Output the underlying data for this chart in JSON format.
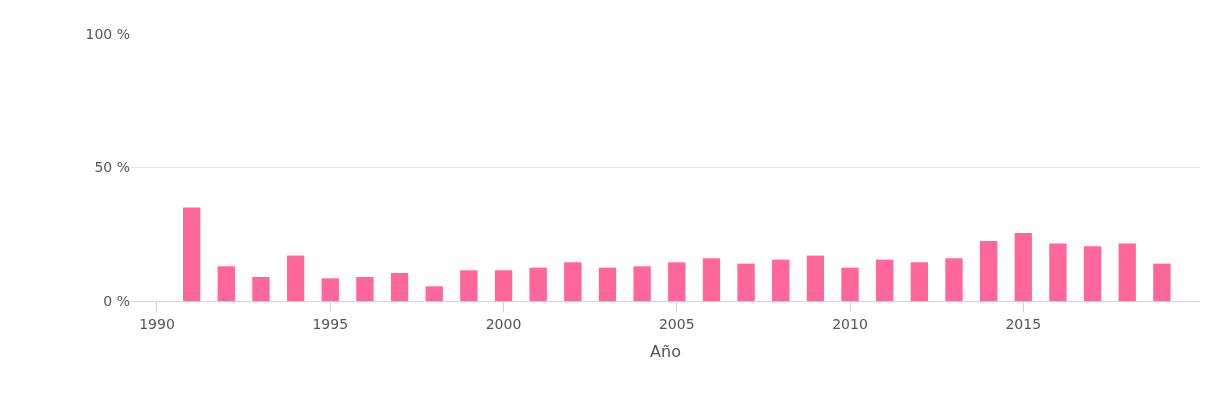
{
  "chart_data": {
    "type": "bar",
    "xlabel": "Año",
    "x": [
      1991,
      1992,
      1993,
      1994,
      1995,
      1996,
      1997,
      1998,
      1999,
      2000,
      2001,
      2002,
      2003,
      2004,
      2005,
      2006,
      2007,
      2008,
      2009,
      2010,
      2011,
      2012,
      2013,
      2014,
      2015,
      2016,
      2017,
      2018,
      2019
    ],
    "values": [
      35,
      13,
      9,
      17,
      8.5,
      9,
      10.5,
      5.5,
      11.5,
      11.5,
      12.5,
      14.5,
      12.5,
      13,
      14.5,
      16,
      14,
      15.5,
      17,
      12.5,
      15.5,
      14.5,
      16,
      22.5,
      25.5,
      21.5,
      20.5,
      21.5,
      14
    ],
    "color": "#ff6699",
    "xlim": [
      1989.25,
      2020.1
    ],
    "xticks": [
      1990,
      1995,
      2000,
      2005,
      2010,
      2015
    ],
    "ylim": [
      0,
      100
    ],
    "yticks": [
      {
        "value": 0,
        "label": "0 %"
      },
      {
        "value": 50,
        "label": "50 %"
      },
      {
        "value": 100,
        "label": "100 %"
      }
    ],
    "grid": "y"
  }
}
